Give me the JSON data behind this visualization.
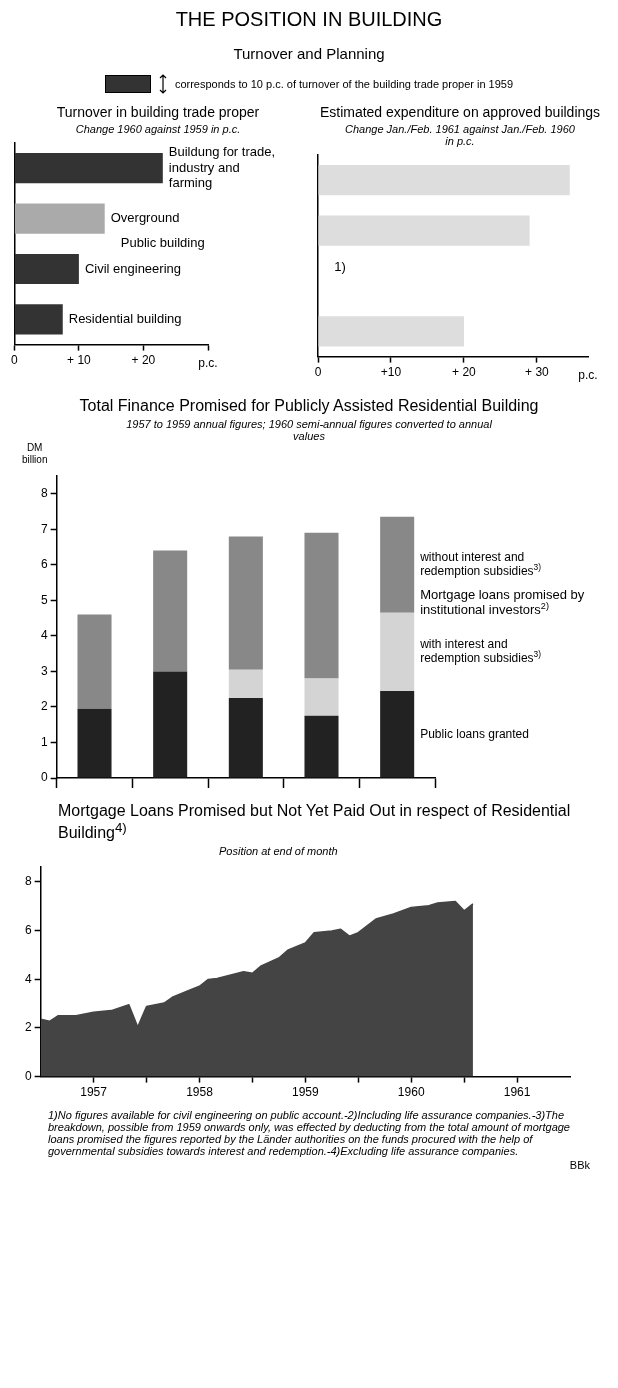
{
  "chart_data": [
    {
      "type": "other",
      "title": "THE POSITION IN BUILDING",
      "subtitle": "Turnover and Planning",
      "annotations": [
        "corresponds to 10 p.c. of turnover of the building trade proper in 1959"
      ]
    },
    {
      "type": "bar",
      "orientation": "horizontal",
      "title": "Turnover in building trade proper",
      "subtitle": "Change 1960 against 1959 in p.c.",
      "xlabel": "p.c.",
      "categories": [
        "Buildung for trade, industry and farming",
        "Overground",
        "Civil engineering",
        "Residential building"
      ],
      "values": [
        23,
        14,
        10,
        7.5
      ],
      "colors": [
        "#333333",
        "#aaaaaa",
        "#333333",
        "#333333"
      ],
      "xlim": [
        0,
        30
      ],
      "xticks": [
        0,
        {
          "value": 10,
          "label": "+ 10"
        },
        {
          "value": 20,
          "label": "+ 20"
        },
        {
          "value": 30,
          "label": null
        }
      ],
      "tick_labels": "x",
      "annotations": [
        "Public building"
      ]
    },
    {
      "type": "bar",
      "orientation": "horizontal",
      "title": "Estimated expenditure on approved buildings",
      "subtitle": "Change Jan./Feb. 1961 against Jan./Feb. 1960 in p.c.",
      "xlabel": "p.c.",
      "categories": [
        null,
        null,
        null,
        null
      ],
      "values": [
        34.5,
        29,
        null,
        20
      ],
      "colors": [
        "#dddddd",
        "#dddddd",
        "#dddddd",
        "#dddddd"
      ],
      "xlim": [
        0,
        37
      ],
      "xticks": [
        0,
        {
          "value": 10,
          "label": "+10"
        },
        {
          "value": 20,
          "label": "+ 20"
        },
        {
          "value": 30,
          "label": "+ 30"
        }
      ],
      "tick_labels": "x",
      "annotations": [
        "1)"
      ]
    },
    {
      "type": "bar",
      "stacked": true,
      "title": "Total Finance Promised for Publicly Assisted Residential Building",
      "subtitle": "1957 to 1959 annual figures; 1960 semi-annual figures converted to annual values",
      "ylabel": "DM billion",
      "categories": [
        null,
        null,
        null,
        null,
        null
      ],
      "ylim": [
        0,
        8.5
      ],
      "yticks": [
        0,
        1,
        2,
        3,
        4,
        5,
        6,
        7,
        8
      ],
      "tick_labels": "y",
      "series": [
        {
          "name": "Public loans granted",
          "color": "#222222",
          "values": [
            1.95,
            3.0,
            2.25,
            1.75,
            2.45
          ]
        },
        {
          "name": "with interest and redemption subsidies$^{3)}$",
          "color": "#d4d4d4",
          "values": [
            null,
            null,
            0.8,
            1.05,
            2.2
          ]
        },
        {
          "name": "without interest and redemption subsidies$^{3)}$",
          "color": "#888888",
          "values": [
            2.65,
            3.4,
            3.75,
            4.1,
            2.7
          ]
        }
      ],
      "annotations": [
        "Mortgage loans promised by institutional investors$^{2)}$"
      ]
    },
    {
      "type": "area",
      "title": "Mortgage Loans Promised but Not Yet Paid Out in respect of Residential Building$^{4)}$",
      "subtitle": "Position at end of month",
      "color": "#444444",
      "marker": "none",
      "x": [
        "1957-01",
        "1957-02",
        "1957-03",
        "1957-05",
        "1957-07",
        "1957-09",
        "1957-11",
        "1957-12",
        "1958-01",
        "1958-03",
        "1958-04",
        "1958-06",
        "1958-07",
        "1958-08",
        "1958-09",
        "1958-12",
        "1959-01",
        "1959-02",
        "1959-04",
        "1959-05",
        "1959-07",
        "1959-08",
        "1959-10",
        "1959-11",
        "1959-12",
        "1960-01",
        "1960-03",
        "1960-05",
        "1960-07",
        "1960-09",
        "1960-10",
        "1960-12",
        "1961-01",
        "1961-02"
      ],
      "values": [
        2.36,
        2.27,
        2.5,
        2.5,
        2.64,
        2.71,
        2.95,
        2.04,
        2.88,
        3.02,
        3.27,
        3.57,
        3.71,
        3.99,
        4.03,
        4.31,
        4.24,
        4.55,
        4.87,
        5.19,
        5.49,
        5.91,
        5.98,
        6.05,
        5.77,
        5.91,
        6.47,
        6.68,
        6.95,
        7.02,
        7.13,
        7.19,
        6.81,
        7.09
      ],
      "xlim": [
        "1957-01",
        "1962-01"
      ],
      "xticks": [
        {
          "value": "1957-07",
          "label": "1957"
        },
        {
          "value": "1958-01",
          "label": null
        },
        {
          "value": "1958-07",
          "label": "1958"
        },
        {
          "value": "1959-01",
          "label": null
        },
        {
          "value": "1959-07",
          "label": "1959"
        },
        {
          "value": "1960-01",
          "label": null
        },
        {
          "value": "1960-07",
          "label": "1960"
        },
        {
          "value": "1961-01",
          "label": null
        },
        {
          "value": "1961-07",
          "label": "1961"
        }
      ],
      "ylim": [
        0,
        8.6
      ],
      "yticks": [
        0,
        2,
        4,
        6,
        8
      ],
      "annotations": [
        "1)No figures available for civil engineering on public account.-2)Including life assurance companies.-3)The breakdown, possible from 1959 onwards only, was effected by deducting from the total amount of mortgage loans promised the figures reported by the Länder authorities on the funds procured with the help of governmental subsidies towards interest and redemption.-4)Excluding life assurance companies.",
        "BBk"
      ]
    }
  ]
}
